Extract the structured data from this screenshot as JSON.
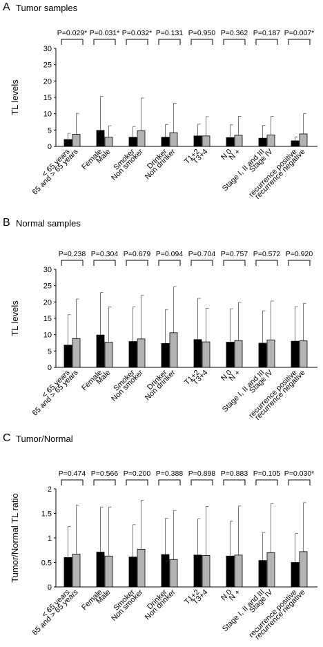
{
  "chart_data": [
    {
      "type": "bar",
      "panel_letter": "A",
      "title": "Tumor samples",
      "ylabel": "TL levels",
      "ylim": [
        0,
        30
      ],
      "yticks": [
        "0",
        "5",
        "10",
        "15",
        "20",
        "25",
        "30"
      ],
      "series_colors": [
        "#000000",
        "#b3b3b3"
      ],
      "groups": [
        {
          "p": "P=0.029*",
          "labels": [
            "< 65 years",
            "65 and > 65 years"
          ],
          "values": [
            2.1,
            3.7
          ],
          "errors": [
            4.0,
            10.1
          ]
        },
        {
          "p": "P=0.031*",
          "labels": [
            "Female",
            "Male"
          ],
          "values": [
            4.9,
            2.8
          ],
          "errors": [
            15.3,
            6.3
          ]
        },
        {
          "p": "P=0.032*",
          "labels": [
            "Smoker",
            "Non smoker"
          ],
          "values": [
            2.8,
            4.8
          ],
          "errors": [
            6.1,
            14.8
          ]
        },
        {
          "p": "P=0.131",
          "labels": [
            "Drinker",
            "Non drinker"
          ],
          "values": [
            2.8,
            4.2
          ],
          "errors": [
            6.7,
            13.2
          ]
        },
        {
          "p": "P=0.950",
          "labels": [
            "T1+2",
            "T3+4"
          ],
          "values": [
            3.2,
            3.2
          ],
          "errors": [
            6.8,
            9.1
          ]
        },
        {
          "p": "P=0.362",
          "labels": [
            "N 0",
            "N +"
          ],
          "values": [
            2.7,
            3.4
          ],
          "errors": [
            6.6,
            9.2
          ]
        },
        {
          "p": "P=0.187",
          "labels": [
            "Stage I, II and III",
            "Stage IV"
          ],
          "values": [
            2.5,
            3.5
          ],
          "errors": [
            6.4,
            9.2
          ]
        },
        {
          "p": "P=0.007*",
          "labels": [
            "recurrence positive",
            "recurrence negative"
          ],
          "values": [
            1.7,
            3.8
          ],
          "errors": [
            2.9,
            10.0
          ]
        }
      ]
    },
    {
      "type": "bar",
      "panel_letter": "B",
      "title": "Normal samples",
      "ylabel": "TL levels",
      "ylim": [
        0,
        30
      ],
      "yticks": [
        "0",
        "5",
        "10",
        "15",
        "20",
        "25",
        "30"
      ],
      "series_colors": [
        "#000000",
        "#b3b3b3"
      ],
      "groups": [
        {
          "p": "P=0.238",
          "labels": [
            "< 65 years",
            "65 and > 65 years"
          ],
          "values": [
            6.8,
            8.8
          ],
          "errors": [
            16.1,
            20.9
          ]
        },
        {
          "p": "P=0.304",
          "labels": [
            "Female",
            "Male"
          ],
          "values": [
            9.9,
            7.7
          ],
          "errors": [
            22.9,
            18.5
          ]
        },
        {
          "p": "P=0.679",
          "labels": [
            "Smoker",
            "Non smoker"
          ],
          "values": [
            7.9,
            8.7
          ],
          "errors": [
            18.5,
            22.0
          ]
        },
        {
          "p": "P=0.094",
          "labels": [
            "Drinker",
            "Non drinker"
          ],
          "values": [
            7.3,
            10.6
          ],
          "errors": [
            17.7,
            24.7
          ]
        },
        {
          "p": "P=0.704",
          "labels": [
            "T1+2",
            "T3+4"
          ],
          "values": [
            8.5,
            7.8
          ],
          "errors": [
            21.1,
            18.1
          ]
        },
        {
          "p": "P=0.757",
          "labels": [
            "N 0",
            "N +"
          ],
          "values": [
            7.7,
            8.2
          ],
          "errors": [
            17.9,
            19.9
          ]
        },
        {
          "p": "P=0.572",
          "labels": [
            "Stage I, II and III",
            "Stage IV"
          ],
          "values": [
            7.4,
            8.4
          ],
          "errors": [
            17.3,
            20.3
          ]
        },
        {
          "p": "P=0.920",
          "labels": [
            "recurrence positive",
            "recurrence negative"
          ],
          "values": [
            8.0,
            8.1
          ],
          "errors": [
            18.6,
            19.6
          ]
        }
      ]
    },
    {
      "type": "bar",
      "panel_letter": "C",
      "title": "Tumor/Normal",
      "ylabel": "Tumor/Normal TL ratio",
      "ylim": [
        0,
        2
      ],
      "yticks": [
        "0",
        "0.5",
        "1",
        "1.5",
        "2"
      ],
      "series_colors": [
        "#000000",
        "#b3b3b3"
      ],
      "groups": [
        {
          "p": "P=0.474",
          "labels": [
            "< 65 years",
            "65 and > 65 years"
          ],
          "values": [
            0.6,
            0.67
          ],
          "errors": [
            1.23,
            1.67
          ]
        },
        {
          "p": "P=0.566",
          "labels": [
            "Female",
            "Male"
          ],
          "values": [
            0.71,
            0.63
          ],
          "errors": [
            1.63,
            1.63
          ]
        },
        {
          "p": "P=0.200",
          "labels": [
            "Smoker",
            "Non smoker"
          ],
          "values": [
            0.61,
            0.77
          ],
          "errors": [
            1.27,
            1.77
          ]
        },
        {
          "p": "P=0.388",
          "labels": [
            "Drinker",
            "Non drinker"
          ],
          "values": [
            0.66,
            0.56
          ],
          "errors": [
            1.4,
            1.56
          ]
        },
        {
          "p": "P=0.898",
          "labels": [
            "T1+2",
            "T3+4"
          ],
          "values": [
            0.65,
            0.64
          ],
          "errors": [
            1.39,
            1.64
          ]
        },
        {
          "p": "P=0.883",
          "labels": [
            "N 0",
            "N +"
          ],
          "values": [
            0.63,
            0.65
          ],
          "errors": [
            1.34,
            1.65
          ]
        },
        {
          "p": "P=0.105",
          "labels": [
            "Stage I, II and III",
            "Stage IV"
          ],
          "values": [
            0.54,
            0.7
          ],
          "errors": [
            1.11,
            1.7
          ]
        },
        {
          "p": "P=0.030*",
          "labels": [
            "recurrence positive",
            "recurrence negative"
          ],
          "values": [
            0.5,
            0.72
          ],
          "errors": [
            1.09,
            1.72
          ]
        }
      ]
    }
  ]
}
